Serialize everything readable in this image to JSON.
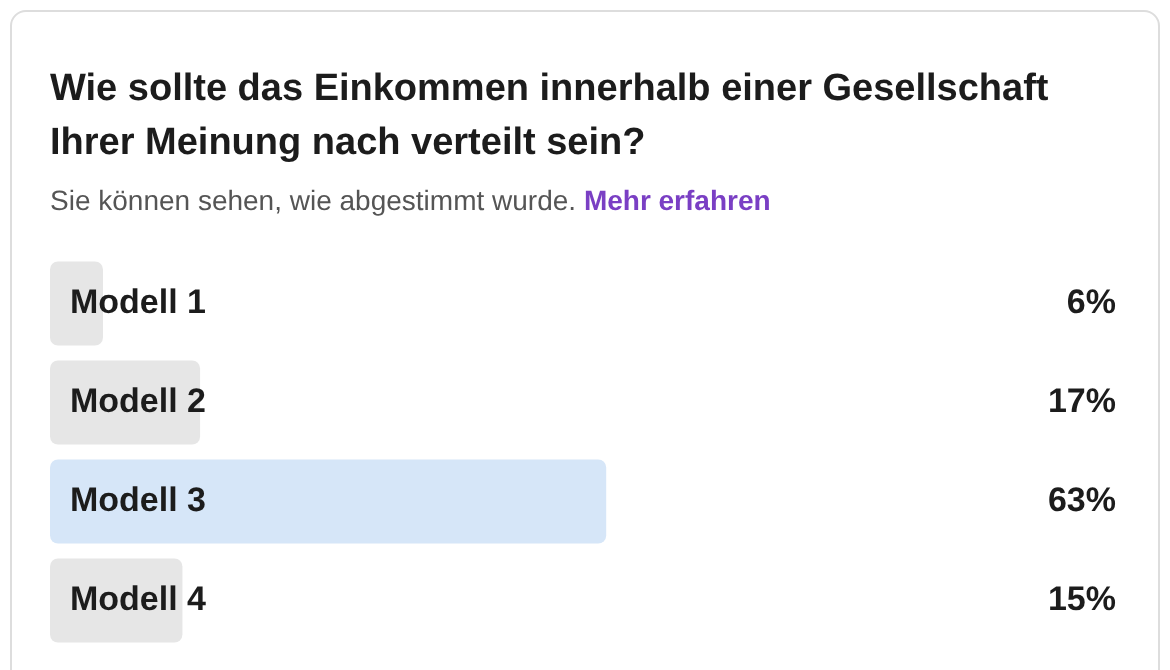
{
  "chart_data": {
    "type": "bar",
    "orientation": "horizontal",
    "title": "Wie sollte das Einkommen innerhalb einer Gesellschaft Ihrer Meinung nach verteilt sein?",
    "subtitle": "Sie können sehen, wie abgestimmt wurde.",
    "annotations": [
      "Mehr erfahren"
    ],
    "categories": [
      "Modell 1",
      "Modell 2",
      "Modell 3",
      "Modell 4"
    ],
    "values": [
      6,
      17,
      63,
      15
    ],
    "colors": [
      "#e6e6e6",
      "#e6e6e6",
      "#d6e6f8",
      "#e6e6e6"
    ],
    "value_labels": [
      "6%",
      "17%",
      "63%",
      "15%"
    ],
    "legend": false
  }
}
